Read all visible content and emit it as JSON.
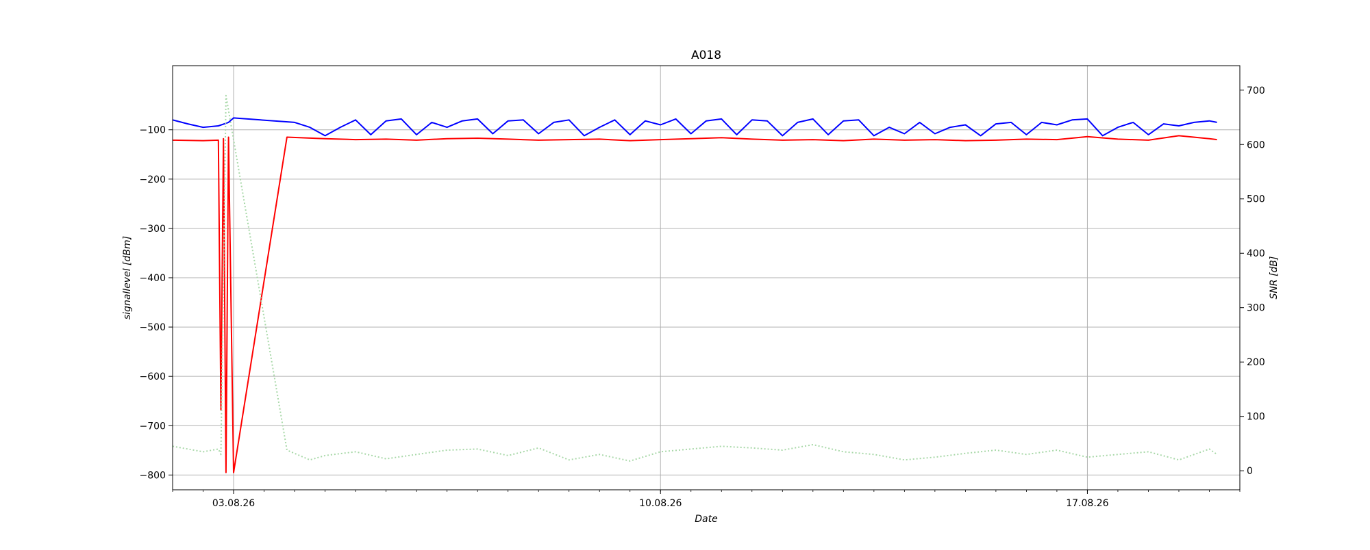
{
  "chart_data": {
    "type": "line",
    "title": "A018",
    "xlabel": "Date",
    "ylabel_left": "signallevel [dBm]",
    "ylabel_right": "SNR [dB]",
    "x_range": [
      "2026-08-02T00:00",
      "2026-08-19T12:00"
    ],
    "y_left_range": [
      -830,
      30
    ],
    "y_right_range": [
      -35,
      745
    ],
    "x_ticks": [
      {
        "date": "2026-08-03",
        "label": "03.08.26"
      },
      {
        "date": "2026-08-10",
        "label": "10.08.26"
      },
      {
        "date": "2026-08-17",
        "label": "17.08.26"
      }
    ],
    "y_left_ticks": [
      {
        "value": -100,
        "label": "−100"
      },
      {
        "value": -200,
        "label": "−200"
      },
      {
        "value": -300,
        "label": "−300"
      },
      {
        "value": -400,
        "label": "−400"
      },
      {
        "value": -500,
        "label": "−500"
      },
      {
        "value": -600,
        "label": "−600"
      },
      {
        "value": -700,
        "label": "−700"
      },
      {
        "value": -800,
        "label": "−800"
      }
    ],
    "y_right_ticks": [
      {
        "value": 0,
        "label": "0"
      },
      {
        "value": 100,
        "label": "100"
      },
      {
        "value": 200,
        "label": "200"
      },
      {
        "value": 300,
        "label": "300"
      },
      {
        "value": 400,
        "label": "400"
      },
      {
        "value": 500,
        "label": "500"
      },
      {
        "value": 600,
        "label": "600"
      },
      {
        "value": 700,
        "label": "700"
      }
    ],
    "grid": true,
    "series": [
      {
        "axis": "left",
        "color": "#0000ff",
        "style": "solid",
        "points": [
          [
            "2026-08-02T00:00",
            -80
          ],
          [
            "2026-08-02T06:00",
            -88
          ],
          [
            "2026-08-02T12:00",
            -95
          ],
          [
            "2026-08-02T18:00",
            -92
          ],
          [
            "2026-08-02T22:00",
            -85
          ],
          [
            "2026-08-03T00:00",
            -76
          ],
          [
            "2026-08-04T00:00",
            -85
          ],
          [
            "2026-08-04T06:00",
            -95
          ],
          [
            "2026-08-04T12:00",
            -112
          ],
          [
            "2026-08-04T18:00",
            -95
          ],
          [
            "2026-08-05T00:00",
            -80
          ],
          [
            "2026-08-05T06:00",
            -110
          ],
          [
            "2026-08-05T12:00",
            -82
          ],
          [
            "2026-08-05T18:00",
            -78
          ],
          [
            "2026-08-06T00:00",
            -110
          ],
          [
            "2026-08-06T06:00",
            -85
          ],
          [
            "2026-08-06T12:00",
            -95
          ],
          [
            "2026-08-06T18:00",
            -82
          ],
          [
            "2026-08-07T00:00",
            -78
          ],
          [
            "2026-08-07T06:00",
            -108
          ],
          [
            "2026-08-07T12:00",
            -82
          ],
          [
            "2026-08-07T18:00",
            -80
          ],
          [
            "2026-08-08T00:00",
            -108
          ],
          [
            "2026-08-08T06:00",
            -85
          ],
          [
            "2026-08-08T12:00",
            -80
          ],
          [
            "2026-08-08T18:00",
            -112
          ],
          [
            "2026-08-09T00:00",
            -95
          ],
          [
            "2026-08-09T06:00",
            -80
          ],
          [
            "2026-08-09T12:00",
            -110
          ],
          [
            "2026-08-09T18:00",
            -82
          ],
          [
            "2026-08-10T00:00",
            -90
          ],
          [
            "2026-08-10T06:00",
            -78
          ],
          [
            "2026-08-10T12:00",
            -108
          ],
          [
            "2026-08-10T18:00",
            -82
          ],
          [
            "2026-08-11T00:00",
            -78
          ],
          [
            "2026-08-11T06:00",
            -110
          ],
          [
            "2026-08-11T12:00",
            -80
          ],
          [
            "2026-08-11T18:00",
            -82
          ],
          [
            "2026-08-12T00:00",
            -112
          ],
          [
            "2026-08-12T06:00",
            -85
          ],
          [
            "2026-08-12T12:00",
            -78
          ],
          [
            "2026-08-12T18:00",
            -110
          ],
          [
            "2026-08-13T00:00",
            -82
          ],
          [
            "2026-08-13T06:00",
            -80
          ],
          [
            "2026-08-13T12:00",
            -112
          ],
          [
            "2026-08-13T18:00",
            -95
          ],
          [
            "2026-08-14T00:00",
            -108
          ],
          [
            "2026-08-14T06:00",
            -85
          ],
          [
            "2026-08-14T12:00",
            -108
          ],
          [
            "2026-08-14T18:00",
            -95
          ],
          [
            "2026-08-15T00:00",
            -90
          ],
          [
            "2026-08-15T06:00",
            -112
          ],
          [
            "2026-08-15T12:00",
            -88
          ],
          [
            "2026-08-15T18:00",
            -85
          ],
          [
            "2026-08-16T00:00",
            -110
          ],
          [
            "2026-08-16T06:00",
            -85
          ],
          [
            "2026-08-16T12:00",
            -90
          ],
          [
            "2026-08-16T18:00",
            -80
          ],
          [
            "2026-08-17T00:00",
            -78
          ],
          [
            "2026-08-17T06:00",
            -112
          ],
          [
            "2026-08-17T12:00",
            -95
          ],
          [
            "2026-08-17T18:00",
            -85
          ],
          [
            "2026-08-18T00:00",
            -110
          ],
          [
            "2026-08-18T06:00",
            -88
          ],
          [
            "2026-08-18T12:00",
            -92
          ],
          [
            "2026-08-18T18:00",
            -85
          ],
          [
            "2026-08-19T00:00",
            -82
          ],
          [
            "2026-08-19T03:00",
            -85
          ]
        ]
      },
      {
        "axis": "left",
        "color": "#ff0000",
        "style": "solid",
        "points": [
          [
            "2026-08-02T00:00",
            -121
          ],
          [
            "2026-08-02T12:00",
            -122
          ],
          [
            "2026-08-02T18:00",
            -121
          ],
          [
            "2026-08-02T19:00",
            -668
          ],
          [
            "2026-08-02T20:00",
            -118
          ],
          [
            "2026-08-02T21:00",
            -795
          ],
          [
            "2026-08-02T22:00",
            -115
          ],
          [
            "2026-08-03T00:00",
            -795
          ],
          [
            "2026-08-03T21:00",
            -115
          ],
          [
            "2026-08-04T12:00",
            -118
          ],
          [
            "2026-08-05T00:00",
            -120
          ],
          [
            "2026-08-05T12:00",
            -119
          ],
          [
            "2026-08-06T00:00",
            -121
          ],
          [
            "2026-08-06T12:00",
            -118
          ],
          [
            "2026-08-07T00:00",
            -117
          ],
          [
            "2026-08-07T12:00",
            -119
          ],
          [
            "2026-08-08T00:00",
            -121
          ],
          [
            "2026-08-08T12:00",
            -120
          ],
          [
            "2026-08-09T00:00",
            -119
          ],
          [
            "2026-08-09T12:00",
            -122
          ],
          [
            "2026-08-10T00:00",
            -120
          ],
          [
            "2026-08-10T12:00",
            -118
          ],
          [
            "2026-08-11T00:00",
            -116
          ],
          [
            "2026-08-11T12:00",
            -119
          ],
          [
            "2026-08-12T00:00",
            -121
          ],
          [
            "2026-08-12T12:00",
            -120
          ],
          [
            "2026-08-13T00:00",
            -122
          ],
          [
            "2026-08-13T12:00",
            -119
          ],
          [
            "2026-08-14T00:00",
            -121
          ],
          [
            "2026-08-14T12:00",
            -120
          ],
          [
            "2026-08-15T00:00",
            -122
          ],
          [
            "2026-08-15T12:00",
            -121
          ],
          [
            "2026-08-16T00:00",
            -119
          ],
          [
            "2026-08-16T12:00",
            -120
          ],
          [
            "2026-08-17T00:00",
            -114
          ],
          [
            "2026-08-17T12:00",
            -119
          ],
          [
            "2026-08-18T00:00",
            -121
          ],
          [
            "2026-08-18T12:00",
            -112
          ],
          [
            "2026-08-19T00:00",
            -118
          ],
          [
            "2026-08-19T03:00",
            -120
          ]
        ]
      },
      {
        "axis": "right",
        "color": "#a8d8a8",
        "style": "dotted",
        "points": [
          [
            "2026-08-02T00:00",
            45
          ],
          [
            "2026-08-02T12:00",
            35
          ],
          [
            "2026-08-02T18:00",
            40
          ],
          [
            "2026-08-02T19:00",
            30
          ],
          [
            "2026-08-02T21:00",
            690
          ],
          [
            "2026-08-03T21:00",
            38
          ],
          [
            "2026-08-04T06:00",
            20
          ],
          [
            "2026-08-04T12:00",
            28
          ],
          [
            "2026-08-05T00:00",
            35
          ],
          [
            "2026-08-05T12:00",
            22
          ],
          [
            "2026-08-06T00:00",
            30
          ],
          [
            "2026-08-06T12:00",
            38
          ],
          [
            "2026-08-07T00:00",
            40
          ],
          [
            "2026-08-07T12:00",
            28
          ],
          [
            "2026-08-08T00:00",
            42
          ],
          [
            "2026-08-08T12:00",
            20
          ],
          [
            "2026-08-09T00:00",
            30
          ],
          [
            "2026-08-09T12:00",
            18
          ],
          [
            "2026-08-10T00:00",
            35
          ],
          [
            "2026-08-10T12:00",
            40
          ],
          [
            "2026-08-11T00:00",
            45
          ],
          [
            "2026-08-11T12:00",
            42
          ],
          [
            "2026-08-12T00:00",
            38
          ],
          [
            "2026-08-12T12:00",
            48
          ],
          [
            "2026-08-13T00:00",
            35
          ],
          [
            "2026-08-13T12:00",
            30
          ],
          [
            "2026-08-14T00:00",
            20
          ],
          [
            "2026-08-14T12:00",
            25
          ],
          [
            "2026-08-15T00:00",
            32
          ],
          [
            "2026-08-15T12:00",
            38
          ],
          [
            "2026-08-16T00:00",
            30
          ],
          [
            "2026-08-16T12:00",
            38
          ],
          [
            "2026-08-17T00:00",
            25
          ],
          [
            "2026-08-17T12:00",
            30
          ],
          [
            "2026-08-18T00:00",
            35
          ],
          [
            "2026-08-18T12:00",
            20
          ],
          [
            "2026-08-19T00:00",
            40
          ],
          [
            "2026-08-19T03:00",
            30
          ]
        ]
      }
    ]
  }
}
